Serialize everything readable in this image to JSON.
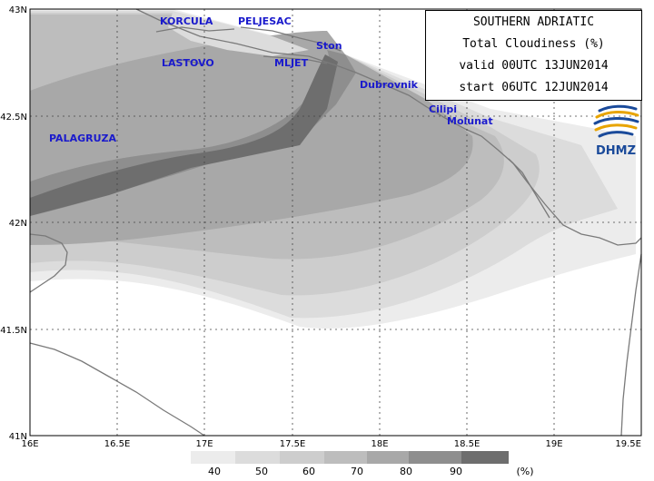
{
  "title_box": {
    "line1": "SOUTHERN ADRIATIC",
    "line2": "Total Cloudiness (%)",
    "line3": "valid 00UTC 13JUN2014",
    "line4": "start 06UTC 12JUN2014"
  },
  "logo": {
    "text": "DHMZ"
  },
  "colors": {
    "c40": "#ececec",
    "c50": "#dcdcdc",
    "c60": "#cdcdcd",
    "c70": "#bdbdbd",
    "c80": "#a8a8a8",
    "c90": "#8e8e8e",
    "c95": "#6e6e6e",
    "coast": "#7a7a7a",
    "logo_blue": "#1a4a9a",
    "logo_gold": "#e8a400"
  },
  "chart_data": {
    "type": "heatmap",
    "title": "Total Cloudiness (%)",
    "x_ticks": [
      "16E",
      "16.5E",
      "17E",
      "17.5E",
      "18E",
      "18.5E",
      "19E",
      "19.5E"
    ],
    "y_ticks": [
      "43N",
      "42.5N",
      "42N",
      "41.5N",
      "41N"
    ],
    "xlim": [
      16,
      19.5
    ],
    "ylim": [
      41,
      43
    ],
    "grid": true,
    "colorbar": {
      "labels": [
        "40",
        "50",
        "60",
        "70",
        "80",
        "90"
      ],
      "unit": "(%)"
    },
    "places": [
      {
        "name": "KORCULA",
        "lon": 16.9,
        "lat": 42.92
      },
      {
        "name": "PELJESAC",
        "lon": 17.35,
        "lat": 42.92
      },
      {
        "name": "Ston",
        "lon": 17.7,
        "lat": 42.81
      },
      {
        "name": "LASTOVO",
        "lon": 16.85,
        "lat": 42.74
      },
      {
        "name": "MLJET",
        "lon": 17.38,
        "lat": 42.74
      },
      {
        "name": "Dubrovnik",
        "lon": 18.05,
        "lat": 42.65
      },
      {
        "name": "PALAGRUZA",
        "lon": 16.25,
        "lat": 42.4
      },
      {
        "name": "Cilipi",
        "lon": 18.28,
        "lat": 42.52
      },
      {
        "name": "Molunat",
        "lon": 18.42,
        "lat": 42.47
      }
    ]
  }
}
